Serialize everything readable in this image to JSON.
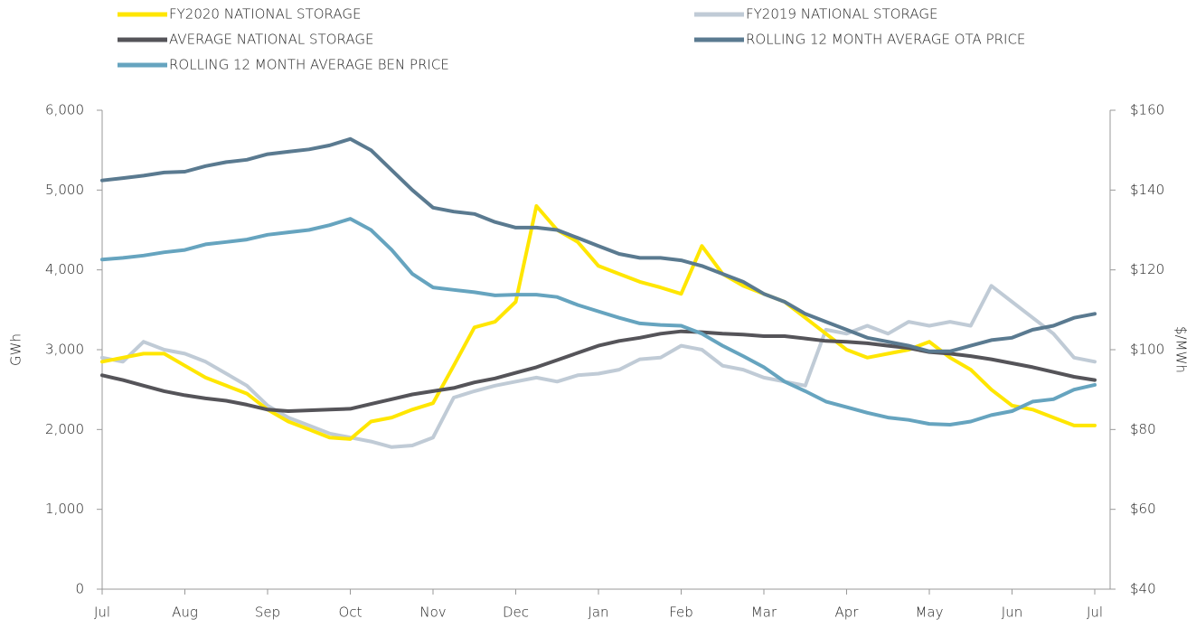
{
  "chart_data": {
    "type": "line",
    "y_label": "GWh",
    "y2_label": "$/MWh",
    "categories": [
      "Jul",
      null,
      null,
      null,
      "Aug",
      null,
      null,
      null,
      "Sep",
      null,
      null,
      null,
      "Oct",
      null,
      null,
      null,
      "Nov",
      null,
      null,
      null,
      "Dec",
      null,
      null,
      null,
      "Jan",
      null,
      null,
      null,
      "Feb",
      null,
      null,
      null,
      "Mar",
      null,
      null,
      null,
      "Apr",
      null,
      null,
      null,
      "May",
      null,
      null,
      null,
      "Jun",
      null,
      null,
      null,
      "Jul"
    ],
    "ylim": [
      0,
      6000
    ],
    "yticks": [
      0,
      {
        "value": 1000,
        "label": "1,000"
      },
      {
        "value": 2000,
        "label": "2,000"
      },
      {
        "value": 3000,
        "label": "3,000"
      },
      {
        "value": 4000,
        "label": "4,000"
      },
      {
        "value": 5000,
        "label": "5,000"
      },
      {
        "value": 6000,
        "label": "6,000"
      }
    ],
    "y2lim": [
      40,
      160
    ],
    "y2ticks": [
      {
        "value": 40,
        "label": "$40"
      },
      {
        "value": 60,
        "label": "$60"
      },
      {
        "value": 80,
        "label": "$80"
      },
      {
        "value": 100,
        "label": "$100"
      },
      {
        "value": 120,
        "label": "$120"
      },
      {
        "value": 140,
        "label": "$140"
      },
      {
        "value": 160,
        "label": "$160"
      }
    ],
    "series": [
      {
        "name": "FY2020 NATIONAL STORAGE",
        "color": "#ffe600",
        "values": [
          2850,
          2900,
          2950,
          2950,
          2800,
          2650,
          2550,
          2450,
          2250,
          2100,
          2000,
          1900,
          1880,
          2100,
          2150,
          2250,
          2330,
          2800,
          3280,
          3350,
          3600,
          4800,
          4500,
          4350,
          4050,
          3950,
          3850,
          3780,
          3700,
          4300,
          3950,
          3800,
          3700,
          3600,
          3400,
          3200,
          3000,
          2900,
          2950,
          3000,
          3100,
          2900,
          2750,
          2500,
          2300,
          2250,
          2150,
          2050,
          2050
        ]
      },
      {
        "name": "FY2019 NATIONAL STORAGE",
        "color": "#c0cbd6",
        "values": [
          2900,
          2850,
          3100,
          3000,
          2950,
          2850,
          2700,
          2550,
          2300,
          2150,
          2050,
          1950,
          1900,
          1850,
          1780,
          1800,
          1900,
          2400,
          2480,
          2550,
          2600,
          2650,
          2600,
          2680,
          2700,
          2750,
          2880,
          2900,
          3050,
          3000,
          2800,
          2750,
          2650,
          2600,
          2550,
          3250,
          3200,
          3300,
          3200,
          3350,
          3300,
          3350,
          3300,
          3800,
          3600,
          3400,
          3200,
          2900,
          2850
        ]
      },
      {
        "name": "AVERAGE NATIONAL STORAGE",
        "color": "#555459",
        "values": [
          2680,
          2620,
          2550,
          2480,
          2430,
          2390,
          2360,
          2310,
          2250,
          2230,
          2240,
          2250,
          2260,
          2320,
          2380,
          2440,
          2480,
          2520,
          2590,
          2640,
          2710,
          2780,
          2870,
          2960,
          3050,
          3110,
          3150,
          3200,
          3230,
          3220,
          3200,
          3190,
          3170,
          3170,
          3140,
          3110,
          3100,
          3080,
          3050,
          3020,
          2970,
          2950,
          2920,
          2880,
          2830,
          2780,
          2720,
          2660,
          2620
        ]
      },
      {
        "name": "ROLLING 12 MONTH AVERAGE OTA PRICE",
        "color": "#5a7a90",
        "axis": "y2",
        "values": [
          142.4,
          143,
          143.6,
          144.4,
          144.6,
          146,
          147,
          147.6,
          149,
          149.6,
          150.2,
          151.2,
          152.8,
          150,
          145,
          140,
          135.6,
          134.6,
          134,
          132,
          130.6,
          130.6,
          130,
          128,
          126,
          124,
          123,
          123,
          122.4,
          121,
          119,
          117,
          114,
          112,
          109,
          107,
          105,
          103,
          102,
          101,
          99.6,
          99.6,
          101,
          102.4,
          103,
          105,
          106,
          108,
          109
        ]
      },
      {
        "name": "ROLLING 12 MONTH AVERAGE BEN PRICE",
        "color": "#66a4bf",
        "axis": "y2",
        "values": [
          122.6,
          123,
          123.6,
          124.4,
          125,
          126.4,
          127,
          127.6,
          128.8,
          129.4,
          130,
          131.2,
          132.8,
          130,
          125,
          119,
          115.6,
          115,
          114.4,
          113.6,
          113.8,
          113.8,
          113.2,
          111.2,
          109.6,
          108,
          106.6,
          106.2,
          106,
          104,
          101,
          98.4,
          95.6,
          92,
          89.6,
          87,
          85.6,
          84.2,
          83,
          82.4,
          81.4,
          81.2,
          82,
          83.6,
          84.6,
          87,
          87.6,
          90,
          91.2
        ]
      }
    ]
  }
}
